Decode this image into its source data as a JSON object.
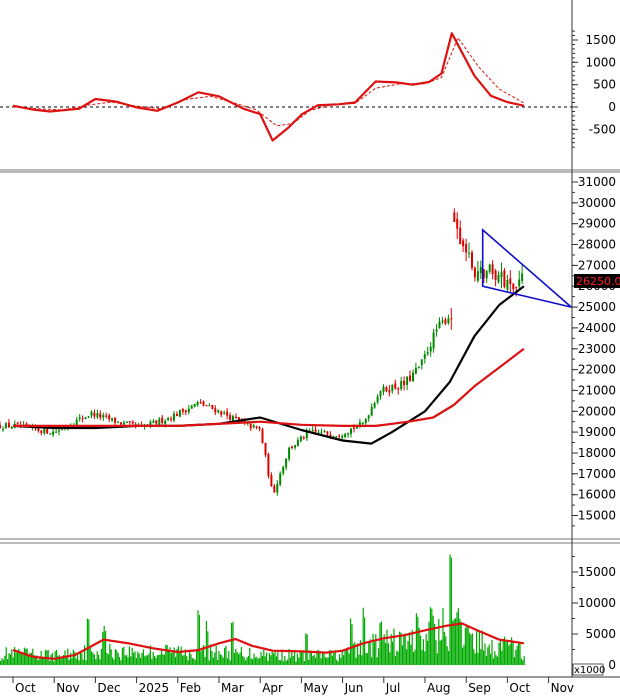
{
  "chart_data": [
    {
      "type": "line",
      "panel": "oscillator",
      "y_ticks": [
        1500,
        1000,
        500,
        0,
        -500
      ],
      "ylim": [
        -950,
        1800
      ],
      "zero_line": true,
      "series": [
        {
          "color": "#dd1111",
          "style": "solid",
          "points": [
            [
              0,
              30
            ],
            [
              0.5,
              -60
            ],
            [
              0.9,
              -100
            ],
            [
              1.2,
              -75
            ],
            [
              1.6,
              -40
            ],
            [
              2.0,
              180
            ],
            [
              2.5,
              120
            ],
            [
              3.0,
              -10
            ],
            [
              3.5,
              -85
            ],
            [
              4.0,
              100
            ],
            [
              4.5,
              330
            ],
            [
              5.0,
              240
            ],
            [
              5.6,
              -40
            ],
            [
              6.0,
              -160
            ],
            [
              6.3,
              -750
            ],
            [
              6.7,
              -450
            ],
            [
              7.0,
              -170
            ],
            [
              7.4,
              40
            ],
            [
              7.9,
              60
            ],
            [
              8.3,
              100
            ],
            [
              8.8,
              570
            ],
            [
              9.3,
              550
            ],
            [
              9.7,
              500
            ],
            [
              10.1,
              560
            ],
            [
              10.4,
              750
            ],
            [
              10.65,
              1650
            ],
            [
              11.2,
              700
            ],
            [
              11.6,
              250
            ],
            [
              12.0,
              110
            ],
            [
              12.4,
              30
            ]
          ]
        },
        {
          "color": "#dd1111",
          "style": "dashed",
          "points": [
            [
              0,
              0
            ],
            [
              0.6,
              -40
            ],
            [
              1.2,
              -65
            ],
            [
              1.8,
              40
            ],
            [
              2.4,
              110
            ],
            [
              3.0,
              20
            ],
            [
              3.6,
              -40
            ],
            [
              4.2,
              170
            ],
            [
              4.8,
              240
            ],
            [
              5.4,
              80
            ],
            [
              5.9,
              -60
            ],
            [
              6.4,
              -420
            ],
            [
              6.8,
              -370
            ],
            [
              7.2,
              -80
            ],
            [
              7.7,
              40
            ],
            [
              8.3,
              80
            ],
            [
              8.8,
              420
            ],
            [
              9.4,
              520
            ],
            [
              10.0,
              520
            ],
            [
              10.4,
              660
            ],
            [
              10.8,
              1550
            ],
            [
              11.3,
              900
            ],
            [
              11.8,
              400
            ],
            [
              12.4,
              90
            ]
          ]
        }
      ]
    },
    {
      "type": "candlestick",
      "panel": "price",
      "y_ticks": [
        31000,
        30000,
        29000,
        28000,
        27000,
        26000,
        25000,
        24000,
        23000,
        22000,
        21000,
        20000,
        19000,
        18000,
        17000,
        16000,
        15000
      ],
      "ylim": [
        14200,
        31200
      ],
      "last_price_label": "26250.00",
      "candle_path": [
        [
          0,
          19300
        ],
        [
          1,
          19000
        ],
        [
          1.9,
          19900
        ],
        [
          2.5,
          19500
        ],
        [
          3.1,
          19200
        ],
        [
          3.8,
          19700
        ],
        [
          4.5,
          20400
        ],
        [
          5.0,
          20000
        ],
        [
          5.6,
          19400
        ],
        [
          6.0,
          19100
        ],
        [
          6.3,
          16000
        ],
        [
          6.7,
          18200
        ],
        [
          7.2,
          19000
        ],
        [
          7.9,
          18900
        ],
        [
          8.5,
          19400
        ],
        [
          8.9,
          21000
        ],
        [
          9.5,
          21300
        ],
        [
          9.9,
          22200
        ],
        [
          10.3,
          24000
        ],
        [
          10.65,
          24700
        ],
        [
          10.7,
          29100
        ],
        [
          11.2,
          26600
        ],
        [
          11.6,
          26800
        ],
        [
          12.0,
          26100
        ],
        [
          12.4,
          26300
        ]
      ],
      "moving_averages": [
        {
          "color": "#000000",
          "points": [
            [
              0,
              19300
            ],
            [
              1,
              19200
            ],
            [
              2,
              19200
            ],
            [
              3,
              19300
            ],
            [
              4,
              19300
            ],
            [
              5,
              19400
            ],
            [
              6,
              19700
            ],
            [
              7,
              19100
            ],
            [
              8,
              18600
            ],
            [
              8.7,
              18450
            ],
            [
              9.2,
              19000
            ],
            [
              10.0,
              20000
            ],
            [
              10.6,
              21400
            ],
            [
              11.2,
              23600
            ],
            [
              11.8,
              25100
            ],
            [
              12.4,
              26000
            ]
          ]
        },
        {
          "color": "#dd1111",
          "points": [
            [
              0,
              19300
            ],
            [
              2,
              19300
            ],
            [
              4,
              19300
            ],
            [
              6,
              19500
            ],
            [
              7,
              19350
            ],
            [
              8,
              19300
            ],
            [
              8.8,
              19300
            ],
            [
              9.6,
              19500
            ],
            [
              10.2,
              19700
            ],
            [
              10.7,
              20300
            ],
            [
              11.2,
              21200
            ],
            [
              11.8,
              22100
            ],
            [
              12.4,
              23000
            ]
          ]
        }
      ],
      "triangle": [
        [
          11.4,
          28700
        ],
        [
          13.55,
          25000
        ],
        [
          11.4,
          26000
        ]
      ],
      "triangle_color": "#1010cc"
    },
    {
      "type": "bar",
      "panel": "volume",
      "y_ticks": [
        15000,
        10000,
        5000,
        0
      ],
      "ylim": [
        0,
        19000
      ],
      "unit_label": "x1000",
      "bar_color": "#00aa00",
      "base_level": [
        [
          0,
          1800
        ],
        [
          1,
          1500
        ],
        [
          2,
          2300
        ],
        [
          3,
          2000
        ],
        [
          4,
          2200
        ],
        [
          5,
          2000
        ],
        [
          6,
          1800
        ],
        [
          7,
          1500
        ],
        [
          8,
          1600
        ],
        [
          8.5,
          2800
        ],
        [
          9,
          3500
        ],
        [
          10,
          4000
        ],
        [
          10.5,
          6000
        ],
        [
          11,
          4000
        ],
        [
          11.5,
          3200
        ],
        [
          12,
          2500
        ],
        [
          12.4,
          2100
        ]
      ],
      "spikes": [
        [
          1.8,
          7700
        ],
        [
          2.2,
          6800
        ],
        [
          4.5,
          9000
        ],
        [
          4.7,
          7200
        ],
        [
          5.3,
          7000
        ],
        [
          7.1,
          5400
        ],
        [
          8.2,
          8300
        ],
        [
          8.5,
          10000
        ],
        [
          8.9,
          7900
        ],
        [
          9.8,
          9200
        ],
        [
          10.15,
          9900
        ],
        [
          10.6,
          18000
        ],
        [
          10.8,
          9500
        ],
        [
          11.0,
          7800
        ],
        [
          11.9,
          5400
        ],
        [
          12.1,
          4800
        ]
      ],
      "moving_average": {
        "color": "#dd1111",
        "points": [
          [
            0,
            2400
          ],
          [
            0.5,
            1300
          ],
          [
            1,
            1000
          ],
          [
            1.5,
            1600
          ],
          [
            2.2,
            4100
          ],
          [
            2.8,
            3500
          ],
          [
            3.4,
            2700
          ],
          [
            4.0,
            2100
          ],
          [
            4.5,
            2400
          ],
          [
            5.0,
            3500
          ],
          [
            5.4,
            4200
          ],
          [
            5.8,
            3100
          ],
          [
            6.3,
            2300
          ],
          [
            7.0,
            2200
          ],
          [
            7.6,
            2000
          ],
          [
            8.0,
            2300
          ],
          [
            8.5,
            3500
          ],
          [
            9.0,
            4300
          ],
          [
            9.5,
            4800
          ],
          [
            10.0,
            5600
          ],
          [
            10.5,
            6300
          ],
          [
            10.9,
            6700
          ],
          [
            11.3,
            5500
          ],
          [
            11.8,
            4100
          ],
          [
            12.4,
            3500
          ]
        ]
      }
    }
  ],
  "x_axis": {
    "labels": [
      "Oct",
      "Nov",
      "Dec",
      "2025",
      "Feb",
      "Mar",
      "Apr",
      "May",
      "Jun",
      "Jul",
      "Aug",
      "Sep",
      "Oct",
      "Nov"
    ]
  }
}
